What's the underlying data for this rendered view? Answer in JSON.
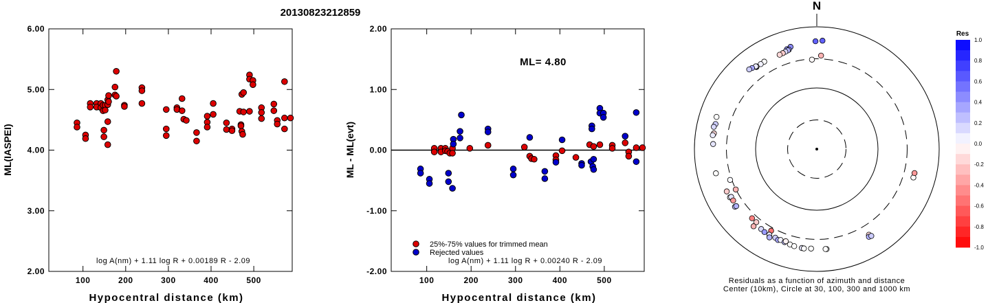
{
  "page_title": "20130823212859",
  "chart_data": [
    {
      "type": "scatter",
      "title": "",
      "xlabel": "Hypocentral distance (km)",
      "ylabel": "ML(IASPEI)",
      "xlim": [
        20,
        590
      ],
      "ylim": [
        2.0,
        6.0
      ],
      "x_ticks": [
        "100",
        "200",
        "300",
        "400",
        "500"
      ],
      "y_ticks": [
        "2.00",
        "3.00",
        "4.00",
        "5.00",
        "6.00"
      ],
      "formula": "log A(nm) + 1.11 log R + 0.00189 R - 2.09",
      "point_color": "#dd0000",
      "series": [
        {
          "points": [
            [
              86,
              4.45
            ],
            [
              86,
              4.38
            ],
            [
              106,
              4.25
            ],
            [
              106,
              4.19
            ],
            [
              117,
              4.77
            ],
            [
              117,
              4.71
            ],
            [
              132,
              4.77
            ],
            [
              132,
              4.71
            ],
            [
              142,
              4.77
            ],
            [
              142,
              4.7
            ],
            [
              147,
              4.74
            ],
            [
              147,
              4.65
            ],
            [
              149,
              4.33
            ],
            [
              149,
              4.22
            ],
            [
              152,
              4.74
            ],
            [
              152,
              4.66
            ],
            [
              158,
              4.83
            ],
            [
              158,
              4.75
            ],
            [
              158,
              4.47
            ],
            [
              158,
              4.09
            ],
            [
              160,
              4.9
            ],
            [
              160,
              4.8
            ],
            [
              175,
              5.04
            ],
            [
              175,
              4.91
            ],
            [
              178,
              5.3
            ],
            [
              178,
              4.89
            ],
            [
              197,
              4.74
            ],
            [
              197,
              4.72
            ],
            [
              238,
              5.03
            ],
            [
              238,
              4.98
            ],
            [
              238,
              4.77
            ],
            [
              295,
              4.67
            ],
            [
              295,
              4.35
            ],
            [
              295,
              4.24
            ],
            [
              320,
              4.7
            ],
            [
              320,
              4.67
            ],
            [
              332,
              4.85
            ],
            [
              332,
              4.65
            ],
            [
              336,
              4.51
            ],
            [
              342,
              4.49
            ],
            [
              366,
              4.29
            ],
            [
              366,
              4.15
            ],
            [
              391,
              4.56
            ],
            [
              391,
              4.46
            ],
            [
              391,
              4.38
            ],
            [
              405,
              4.77
            ],
            [
              405,
              4.59
            ],
            [
              436,
              4.45
            ],
            [
              436,
              4.34
            ],
            [
              449,
              4.35
            ],
            [
              449,
              4.32
            ],
            [
              467,
              4.64
            ],
            [
              470,
              4.42
            ],
            [
              470,
              4.4
            ],
            [
              472,
              4.92
            ],
            [
              472,
              4.31
            ],
            [
              474,
              4.26
            ],
            [
              476,
              4.95
            ],
            [
              476,
              4.63
            ],
            [
              490,
              5.24
            ],
            [
              490,
              5.17
            ],
            [
              490,
              4.64
            ],
            [
              498,
              5.15
            ],
            [
              498,
              5.08
            ],
            [
              518,
              4.7
            ],
            [
              518,
              4.62
            ],
            [
              518,
              4.52
            ],
            [
              547,
              4.76
            ],
            [
              547,
              4.65
            ],
            [
              555,
              4.49
            ],
            [
              555,
              4.43
            ],
            [
              572,
              5.13
            ],
            [
              572,
              4.53
            ],
            [
              572,
              4.35
            ],
            [
              586,
              4.53
            ]
          ]
        }
      ]
    },
    {
      "type": "scatter",
      "title": "",
      "xlabel": "Hypocentral distance (km)",
      "ylabel": "ML - ML(evt)",
      "xlim": [
        20,
        590
      ],
      "ylim": [
        -2.0,
        2.0
      ],
      "x_ticks": [
        "100",
        "200",
        "300",
        "400",
        "500"
      ],
      "y_ticks": [
        "-2.00",
        "-1.00",
        "0.00",
        "1.00",
        "2.00"
      ],
      "annotation": "ML= 4.80",
      "formula": "log A(nm) + 1.11 log R + 0.00240 R - 2.09",
      "reference_line": 0.0,
      "legend_position": "bottom-left",
      "series": [
        {
          "name": "25%-75% values for trimmed mean",
          "color": "#dd0000",
          "points": [
            [
              117,
              0.03
            ],
            [
              117,
              -0.03
            ],
            [
              132,
              0.03
            ],
            [
              132,
              -0.03
            ],
            [
              142,
              0.03
            ],
            [
              142,
              -0.01
            ],
            [
              147,
              -0.02
            ],
            [
              152,
              -0.05
            ],
            [
              158,
              0.03
            ],
            [
              158,
              -0.05
            ],
            [
              197,
              0.03
            ],
            [
              238,
              0.08
            ],
            [
              320,
              0.05
            ],
            [
              332,
              -0.1
            ],
            [
              336,
              -0.14
            ],
            [
              342,
              -0.15
            ],
            [
              391,
              -0.09
            ],
            [
              391,
              -0.16
            ],
            [
              405,
              -0.01
            ],
            [
              436,
              -0.12
            ],
            [
              467,
              0.09
            ],
            [
              476,
              0.06
            ],
            [
              490,
              0.09
            ],
            [
              518,
              0.08
            ],
            [
              518,
              0.03
            ],
            [
              547,
              0.12
            ],
            [
              555,
              -0.03
            ],
            [
              555,
              -0.1
            ],
            [
              572,
              0.04
            ],
            [
              586,
              0.04
            ]
          ]
        },
        {
          "name": "Rejected values",
          "color": "#0000cc",
          "points": [
            [
              86,
              -0.31
            ],
            [
              86,
              -0.38
            ],
            [
              106,
              -0.48
            ],
            [
              106,
              -0.55
            ],
            [
              149,
              -0.38
            ],
            [
              149,
              -0.52
            ],
            [
              158,
              -0.63
            ],
            [
              160,
              0.18
            ],
            [
              160,
              0.1
            ],
            [
              175,
              0.31
            ],
            [
              175,
              0.2
            ],
            [
              178,
              0.58
            ],
            [
              238,
              0.35
            ],
            [
              238,
              0.3
            ],
            [
              295,
              -0.31
            ],
            [
              295,
              -0.41
            ],
            [
              332,
              0.21
            ],
            [
              366,
              -0.35
            ],
            [
              366,
              -0.47
            ],
            [
              391,
              -0.2
            ],
            [
              405,
              0.17
            ],
            [
              449,
              -0.22
            ],
            [
              449,
              -0.25
            ],
            [
              470,
              -0.19
            ],
            [
              472,
              0.4
            ],
            [
              472,
              0.35
            ],
            [
              474,
              -0.27
            ],
            [
              476,
              -0.32
            ],
            [
              476,
              -0.15
            ],
            [
              490,
              0.69
            ],
            [
              490,
              0.61
            ],
            [
              498,
              0.61
            ],
            [
              498,
              0.54
            ],
            [
              547,
              0.23
            ],
            [
              572,
              0.62
            ],
            [
              572,
              -0.19
            ]
          ]
        }
      ]
    },
    {
      "type": "scatter",
      "subtype": "polar",
      "title": "",
      "north_label": "N",
      "caption_line1": "Residuals as a function of azimuth and distance",
      "caption_line2": "Center (10km), Circle at 30, 100, 300 and 1000 km",
      "rings_km": [
        30,
        100,
        300,
        1000
      ],
      "colorbar": {
        "title": "Res",
        "ticks": [
          "1.0",
          "0.8",
          "0.6",
          "0.4",
          "0.2",
          "0.0",
          "-0.2",
          "-0.4",
          "-0.6",
          "-0.8",
          "-1.0"
        ],
        "positive_color": "#0000ff",
        "negative_color": "#ff0000",
        "neutral_color": "#ffffff"
      },
      "stations": [
        {
          "az": 3.0,
          "dist": 596,
          "res": 0.62
        },
        {
          "az": 359.3,
          "dist": 580,
          "res": 0.62
        },
        {
          "az": 345.6,
          "dist": 532,
          "res": 0.45
        },
        {
          "az": 343.4,
          "dist": 507,
          "res": 0.4
        },
        {
          "az": 344.3,
          "dist": 489,
          "res": 0.35
        },
        {
          "az": 343.6,
          "dist": 480,
          "res": 0.3
        },
        {
          "az": 342.1,
          "dist": 471,
          "res": 0.15
        },
        {
          "az": 340.5,
          "dist": 462,
          "res": -0.2
        },
        {
          "az": 338.5,
          "dist": 455,
          "res": -0.15
        },
        {
          "az": 2.6,
          "dist": 339,
          "res": -0.3
        },
        {
          "az": 356.9,
          "dist": 292,
          "res": -0.02
        },
        {
          "az": 329.0,
          "dist": 466,
          "res": 0.0
        },
        {
          "az": 326.6,
          "dist": 462,
          "res": 0.05
        },
        {
          "az": 323.7,
          "dist": 463,
          "res": 0.12
        },
        {
          "az": 323.9,
          "dist": 471,
          "res": -0.1
        },
        {
          "az": 323.6,
          "dist": 479,
          "res": 0.08
        },
        {
          "az": 321.4,
          "dist": 496,
          "res": 0.35
        },
        {
          "az": 319.7,
          "dist": 511,
          "res": 0.2
        },
        {
          "az": 287.8,
          "dist": 526,
          "res": 0.0
        },
        {
          "az": 283.9,
          "dist": 507,
          "res": 0.2
        },
        {
          "az": 282.2,
          "dist": 528,
          "res": 0.15
        },
        {
          "az": 278.7,
          "dist": 502,
          "res": -0.15
        },
        {
          "az": 277.6,
          "dist": 519,
          "res": 0.08
        },
        {
          "az": 272.8,
          "dist": 497,
          "res": 0.1
        },
        {
          "az": 256.5,
          "dist": 496,
          "res": 0.0
        },
        {
          "az": 243.5,
          "dist": 302,
          "res": -0.3
        },
        {
          "az": 250.4,
          "dist": 319,
          "res": 0.02
        },
        {
          "az": 244.8,
          "dist": 423,
          "res": -0.2
        },
        {
          "az": 240.9,
          "dist": 420,
          "res": 0.0
        },
        {
          "az": 240.8,
          "dist": 401,
          "res": 0.1
        },
        {
          "az": 238.4,
          "dist": 402,
          "res": -0.4
        },
        {
          "az": 234.8,
          "dist": 433,
          "res": 0.2
        },
        {
          "az": 234.7,
          "dist": 411,
          "res": 0.3
        },
        {
          "az": 223.1,
          "dist": 354,
          "res": -0.5
        },
        {
          "az": 219.6,
          "dist": 356,
          "res": -0.2
        },
        {
          "az": 209.2,
          "dist": 339,
          "res": -0.55
        },
        {
          "az": 214.8,
          "dist": 391,
          "res": 0.15
        },
        {
          "az": 212.2,
          "dist": 402,
          "res": 0.4
        },
        {
          "az": 209.0,
          "dist": 399,
          "res": 0.1
        },
        {
          "az": 205.1,
          "dist": 398,
          "res": 0.2
        },
        {
          "az": 203.1,
          "dist": 413,
          "res": 0.35
        },
        {
          "az": 201.7,
          "dist": 398,
          "res": 0.05
        },
        {
          "az": 199.1,
          "dist": 407,
          "res": 0.25
        },
        {
          "az": 198.6,
          "dist": 389,
          "res": -0.05
        },
        {
          "az": 219.3,
          "dist": 428,
          "res": -0.3
        },
        {
          "az": 208.2,
          "dist": 435,
          "res": 0.3
        },
        {
          "az": 195.7,
          "dist": 417,
          "res": 0.0
        },
        {
          "az": 193.1,
          "dist": 427,
          "res": 0.0
        },
        {
          "az": 188.6,
          "dist": 433,
          "res": 0.1
        },
        {
          "az": 187.4,
          "dist": 435,
          "res": 0.0
        },
        {
          "az": 183.3,
          "dist": 426,
          "res": 0.0
        },
        {
          "az": 174.4,
          "dist": 440,
          "res": 0.0
        },
        {
          "az": 175.0,
          "dist": 437,
          "res": 0.0
        },
        {
          "az": 148.9,
          "dist": 448,
          "res": 0.0
        },
        {
          "az": 148.7,
          "dist": 436,
          "res": -0.15
        },
        {
          "az": 149.3,
          "dist": 466,
          "res": 0.3
        },
        {
          "az": 147.9,
          "dist": 475,
          "res": 0.2
        },
        {
          "az": 106.4,
          "dist": 442,
          "res": 0.0
        },
        {
          "az": 103.8,
          "dist": 441,
          "res": -0.4
        }
      ]
    }
  ]
}
